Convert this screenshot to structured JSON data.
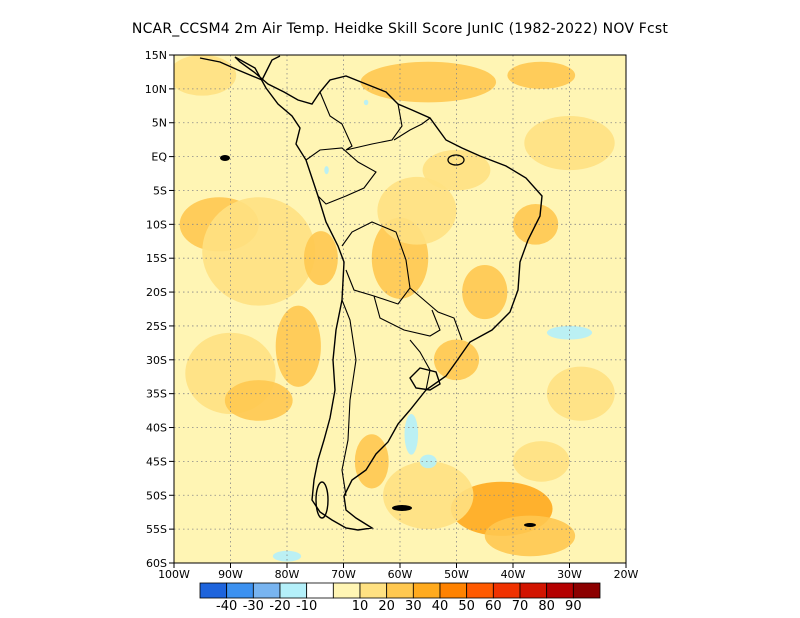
{
  "title": "NCAR_CCSM4  2m Air Temp. Heidke Skill Score JunIC (1982-2022) NOV Fcst",
  "map": {
    "lon_range": [
      -100,
      -20
    ],
    "lat_range": [
      -60,
      15
    ],
    "lat_ticks": [
      {
        "lat": 15,
        "label": "15N"
      },
      {
        "lat": 10,
        "label": "10N"
      },
      {
        "lat": 5,
        "label": "5N"
      },
      {
        "lat": 0,
        "label": "EQ"
      },
      {
        "lat": -5,
        "label": "5S"
      },
      {
        "lat": -10,
        "label": "10S"
      },
      {
        "lat": -15,
        "label": "15S"
      },
      {
        "lat": -20,
        "label": "20S"
      },
      {
        "lat": -25,
        "label": "25S"
      },
      {
        "lat": -30,
        "label": "30S"
      },
      {
        "lat": -35,
        "label": "35S"
      },
      {
        "lat": -40,
        "label": "40S"
      },
      {
        "lat": -45,
        "label": "45S"
      },
      {
        "lat": -50,
        "label": "50S"
      },
      {
        "lat": -55,
        "label": "55S"
      },
      {
        "lat": -60,
        "label": "60S"
      }
    ],
    "lon_ticks": [
      {
        "lon": -100,
        "label": "100W"
      },
      {
        "lon": -90,
        "label": "90W"
      },
      {
        "lon": -80,
        "label": "80W"
      },
      {
        "lon": -70,
        "label": "70W"
      },
      {
        "lon": -60,
        "label": "60W"
      },
      {
        "lon": -50,
        "label": "50W"
      },
      {
        "lon": -40,
        "label": "40W"
      },
      {
        "lon": -30,
        "label": "30W"
      },
      {
        "lon": -20,
        "label": "20W"
      }
    ],
    "grid": true
  },
  "colorbar": {
    "colors": [
      "#1e64dc",
      "#3c91f0",
      "#78b4f0",
      "#b4f0fa",
      "#ffffff",
      "#fff5b4",
      "#ffe182",
      "#ffc850",
      "#ffaa1e",
      "#ff8200",
      "#ff5a00",
      "#f03200",
      "#d21400",
      "#b40000",
      "#8c0000"
    ],
    "labels": [
      "-40",
      "-30",
      "-20",
      "-10",
      "10",
      "20",
      "30",
      "40",
      "50",
      "60",
      "70",
      "80",
      "90"
    ]
  },
  "skill_patches": [
    {
      "level": 30,
      "lon": -92,
      "lat": -10,
      "rx": 7,
      "ry": 4
    },
    {
      "level": 20,
      "lon": -85,
      "lat": -14,
      "rx": 10,
      "ry": 8
    },
    {
      "level": 30,
      "lon": -78,
      "lat": -28,
      "rx": 4,
      "ry": 6
    },
    {
      "level": 20,
      "lon": -90,
      "lat": -32,
      "rx": 8,
      "ry": 6
    },
    {
      "level": 30,
      "lon": -85,
      "lat": -36,
      "rx": 6,
      "ry": 3
    },
    {
      "level": 20,
      "lon": -95,
      "lat": 12,
      "rx": 6,
      "ry": 3
    },
    {
      "level": 30,
      "lon": -74,
      "lat": -15,
      "rx": 3,
      "ry": 4
    },
    {
      "level": 30,
      "lon": -60,
      "lat": -15,
      "rx": 5,
      "ry": 6
    },
    {
      "level": 20,
      "lon": -57,
      "lat": -8,
      "rx": 7,
      "ry": 5
    },
    {
      "level": 30,
      "lon": -45,
      "lat": -20,
      "rx": 4,
      "ry": 4
    },
    {
      "level": 30,
      "lon": -50,
      "lat": -30,
      "rx": 4,
      "ry": 3
    },
    {
      "level": 30,
      "lon": -65,
      "lat": -45,
      "rx": 3,
      "ry": 4
    },
    {
      "level": 40,
      "lon": -42,
      "lat": -52,
      "rx": 9,
      "ry": 4
    },
    {
      "level": 30,
      "lon": -37,
      "lat": -56,
      "rx": 8,
      "ry": 3
    },
    {
      "level": 20,
      "lon": -55,
      "lat": -50,
      "rx": 8,
      "ry": 5
    },
    {
      "level": 30,
      "lon": -55,
      "lat": 11,
      "rx": 12,
      "ry": 3
    },
    {
      "level": 30,
      "lon": -35,
      "lat": 12,
      "rx": 6,
      "ry": 2
    },
    {
      "level": 20,
      "lon": -30,
      "lat": 2,
      "rx": 8,
      "ry": 4
    },
    {
      "level": 20,
      "lon": -50,
      "lat": -2,
      "rx": 6,
      "ry": 3
    },
    {
      "level": 30,
      "lon": -36,
      "lat": -10,
      "rx": 4,
      "ry": 3
    },
    {
      "level": 20,
      "lon": -28,
      "lat": -35,
      "rx": 6,
      "ry": 4
    },
    {
      "level": 20,
      "lon": -35,
      "lat": -45,
      "rx": 5,
      "ry": 3
    },
    {
      "level": -10,
      "lon": -58,
      "lat": -41,
      "rx": 1.2,
      "ry": 3
    },
    {
      "level": -10,
      "lon": -55,
      "lat": -45,
      "rx": 1.5,
      "ry": 1
    },
    {
      "level": -10,
      "lon": -30,
      "lat": -26,
      "rx": 4,
      "ry": 1
    },
    {
      "level": -10,
      "lon": -80,
      "lat": -59,
      "rx": 2.5,
      "ry": 0.8
    },
    {
      "level": -10,
      "lon": -73,
      "lat": -2,
      "rx": 0.4,
      "ry": 0.6
    },
    {
      "level": -10,
      "lon": -66,
      "lat": 8,
      "rx": 0.4,
      "ry": 0.4
    }
  ]
}
